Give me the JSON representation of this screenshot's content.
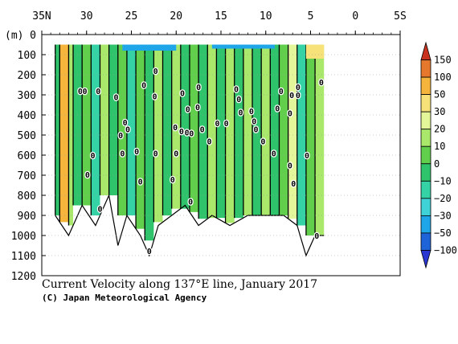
{
  "chart_data": {
    "type": "heatmap",
    "title": "Current Velocity along 137°E line, January 2017",
    "credit": "(C) Japan Meteorological Agency",
    "x_axis": {
      "ticks": [
        "35N",
        "30",
        "25",
        "20",
        "15",
        "10",
        "5",
        "0",
        "5S"
      ],
      "tick_values": [
        35,
        30,
        25,
        20,
        15,
        10,
        5,
        0,
        -5
      ],
      "range": [
        35,
        -5
      ],
      "position": "top"
    },
    "y_axis": {
      "label": "(m)",
      "ticks": [
        "0",
        "100",
        "200",
        "300",
        "400",
        "500",
        "600",
        "700",
        "800",
        "900",
        "1000",
        "1100",
        "1200"
      ],
      "tick_values": [
        0,
        100,
        200,
        300,
        400,
        500,
        600,
        700,
        800,
        900,
        1000,
        1100,
        1200
      ],
      "range": [
        0,
        1200
      ],
      "reversed": true
    },
    "grid": "dotted horizontal",
    "colorbar": {
      "position": "right",
      "labels": [
        "150",
        "100",
        "50",
        "30",
        "20",
        "10",
        "0",
        "−10",
        "−20",
        "−30",
        "−50",
        "−100",
        "−150"
      ],
      "colors": [
        "#c8321e",
        "#e6782d",
        "#f5b43c",
        "#f7e27a",
        "#e3f79a",
        "#a9e86a",
        "#62cf4c",
        "#2fc46b",
        "#34d2a5",
        "#3fd2d6",
        "#1fa6e8",
        "#1e64d8",
        "#2a37d0"
      ]
    },
    "zero_contour_label": "0",
    "data_extent": {
      "lat_north": 33.5,
      "lat_south": 3.5,
      "depth_min": 50
    },
    "depth_profile": [
      [
        33.5,
        900
      ],
      [
        32,
        1000
      ],
      [
        30.5,
        850
      ],
      [
        29,
        950
      ],
      [
        27.5,
        800
      ],
      [
        26.5,
        1050
      ],
      [
        25.5,
        900
      ],
      [
        24,
        1000
      ],
      [
        23,
        1100
      ],
      [
        22,
        950
      ],
      [
        20.5,
        900
      ],
      [
        19,
        850
      ],
      [
        17.5,
        950
      ],
      [
        16,
        900
      ],
      [
        14,
        950
      ],
      [
        12,
        900
      ],
      [
        10,
        900
      ],
      [
        8,
        900
      ],
      [
        6.5,
        950
      ],
      [
        5.5,
        1100
      ],
      [
        4.5,
        1000
      ],
      [
        3.5,
        1000
      ]
    ],
    "velocity_bands": [
      {
        "lat_from": 33.5,
        "lat_to": 33.0,
        "value": -5
      },
      {
        "lat_from": 33.0,
        "lat_to": 32.0,
        "value": 60
      },
      {
        "lat_from": 32.0,
        "lat_to": 31.5,
        "value": 15
      },
      {
        "lat_from": 31.5,
        "lat_to": 30.5,
        "value": -10
      },
      {
        "lat_from": 30.5,
        "lat_to": 29.5,
        "value": 5
      },
      {
        "lat_from": 29.5,
        "lat_to": 28.5,
        "value": -15
      },
      {
        "lat_from": 28.5,
        "lat_to": 27.5,
        "value": 10
      },
      {
        "lat_from": 27.5,
        "lat_to": 26.5,
        "value": -8
      },
      {
        "lat_from": 26.5,
        "lat_to": 25.5,
        "value": 8
      },
      {
        "lat_from": 25.5,
        "lat_to": 24.5,
        "value": -12
      },
      {
        "lat_from": 24.5,
        "lat_to": 23.5,
        "value": 5
      },
      {
        "lat_from": 23.5,
        "lat_to": 22.5,
        "value": -6
      },
      {
        "lat_from": 22.5,
        "lat_to": 21.5,
        "value": 12
      },
      {
        "lat_from": 21.5,
        "lat_to": 20.5,
        "value": -5
      },
      {
        "lat_from": 20.5,
        "lat_to": 19.5,
        "value": 10
      },
      {
        "lat_from": 19.5,
        "lat_to": 18.5,
        "value": -8
      },
      {
        "lat_from": 18.5,
        "lat_to": 17.5,
        "value": 6
      },
      {
        "lat_from": 17.5,
        "lat_to": 16.5,
        "value": -6
      },
      {
        "lat_from": 16.5,
        "lat_to": 15.5,
        "value": 15
      },
      {
        "lat_from": 15.5,
        "lat_to": 14.5,
        "value": -5
      },
      {
        "lat_from": 14.5,
        "lat_to": 13.5,
        "value": 12
      },
      {
        "lat_from": 13.5,
        "lat_to": 12.5,
        "value": -10
      },
      {
        "lat_from": 12.5,
        "lat_to": 11.5,
        "value": 18
      },
      {
        "lat_from": 11.5,
        "lat_to": 10.5,
        "value": -8
      },
      {
        "lat_from": 10.5,
        "lat_to": 9.5,
        "value": 10
      },
      {
        "lat_from": 9.5,
        "lat_to": 8.5,
        "value": -5
      },
      {
        "lat_from": 8.5,
        "lat_to": 7.5,
        "value": 8
      },
      {
        "lat_from": 7.5,
        "lat_to": 6.5,
        "value": 22
      },
      {
        "lat_from": 6.5,
        "lat_to": 5.5,
        "value": -15
      },
      {
        "lat_from": 5.5,
        "lat_to": 4.5,
        "value": 6
      },
      {
        "lat_from": 4.5,
        "lat_to": 3.5,
        "value": 15
      }
    ],
    "surface_patches": [
      {
        "lat_from": 26.0,
        "lat_to": 20.0,
        "depth_to": 80,
        "value": -35
      },
      {
        "lat_from": 16.0,
        "lat_to": 9.0,
        "depth_to": 70,
        "value": -35
      },
      {
        "lat_from": 5.5,
        "lat_to": 3.5,
        "depth_to": 120,
        "value": 40
      }
    ],
    "zero_label_points": [
      [
        30.7,
        280
      ],
      [
        30.2,
        280
      ],
      [
        28.7,
        280
      ],
      [
        26.7,
        310
      ],
      [
        25.7,
        435
      ],
      [
        25.4,
        470
      ],
      [
        26.2,
        500
      ],
      [
        29.3,
        600
      ],
      [
        26.0,
        590
      ],
      [
        23.6,
        250
      ],
      [
        22.3,
        180
      ],
      [
        22.4,
        305
      ],
      [
        19.3,
        290
      ],
      [
        20.1,
        460
      ],
      [
        19.4,
        480
      ],
      [
        18.8,
        485
      ],
      [
        18.3,
        490
      ],
      [
        18.7,
        370
      ],
      [
        17.5,
        260
      ],
      [
        17.6,
        360
      ],
      [
        17.1,
        470
      ],
      [
        16.3,
        530
      ],
      [
        15.4,
        440
      ],
      [
        14.4,
        440
      ],
      [
        13.3,
        270
      ],
      [
        13.0,
        320
      ],
      [
        12.8,
        385
      ],
      [
        11.6,
        380
      ],
      [
        11.3,
        430
      ],
      [
        11.1,
        470
      ],
      [
        10.3,
        530
      ],
      [
        9.1,
        590
      ],
      [
        8.7,
        365
      ],
      [
        8.3,
        280
      ],
      [
        7.1,
        300
      ],
      [
        6.4,
        260
      ],
      [
        6.4,
        300
      ],
      [
        7.3,
        390
      ],
      [
        7.3,
        650
      ],
      [
        6.9,
        740
      ],
      [
        5.4,
        600
      ],
      [
        3.8,
        235
      ],
      [
        4.3,
        1000
      ],
      [
        20.0,
        590
      ],
      [
        22.3,
        590
      ],
      [
        24.4,
        580
      ],
      [
        20.4,
        720
      ],
      [
        18.4,
        830
      ],
      [
        24.0,
        730
      ],
      [
        29.9,
        695
      ],
      [
        28.5,
        865
      ],
      [
        23.0,
        1075
      ]
    ]
  }
}
